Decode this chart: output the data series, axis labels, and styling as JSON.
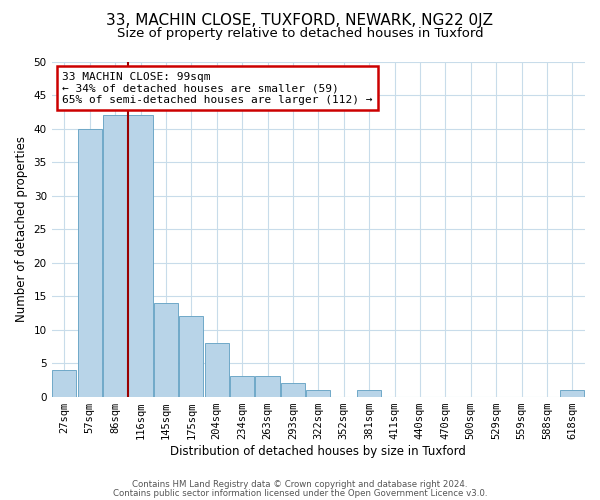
{
  "title1": "33, MACHIN CLOSE, TUXFORD, NEWARK, NG22 0JZ",
  "title2": "Size of property relative to detached houses in Tuxford",
  "xlabel": "Distribution of detached houses by size in Tuxford",
  "ylabel": "Number of detached properties",
  "bar_labels": [
    "27sqm",
    "57sqm",
    "86sqm",
    "116sqm",
    "145sqm",
    "175sqm",
    "204sqm",
    "234sqm",
    "263sqm",
    "293sqm",
    "322sqm",
    "352sqm",
    "381sqm",
    "411sqm",
    "440sqm",
    "470sqm",
    "500sqm",
    "529sqm",
    "559sqm",
    "588sqm",
    "618sqm"
  ],
  "bar_values": [
    4,
    40,
    42,
    42,
    14,
    12,
    8,
    3,
    3,
    2,
    1,
    0,
    1,
    0,
    0,
    0,
    0,
    0,
    0,
    0,
    1
  ],
  "bar_color": "#b8d4e8",
  "bar_edge_color": "#6fa8c8",
  "vline_color": "#990000",
  "vline_x_index": 2.5,
  "annotation_text": "33 MACHIN CLOSE: 99sqm\n← 34% of detached houses are smaller (59)\n65% of semi-detached houses are larger (112) →",
  "annotation_box_edgecolor": "#cc0000",
  "annotation_box_facecolor": "#ffffff",
  "ylim": [
    0,
    50
  ],
  "yticks": [
    0,
    5,
    10,
    15,
    20,
    25,
    30,
    35,
    40,
    45,
    50
  ],
  "footer1": "Contains HM Land Registry data © Crown copyright and database right 2024.",
  "footer2": "Contains public sector information licensed under the Open Government Licence v3.0.",
  "bg_color": "#ffffff",
  "grid_color": "#c8dcea",
  "title1_fontsize": 11,
  "title2_fontsize": 9.5,
  "annot_fontsize": 8,
  "tick_fontsize": 7.5,
  "ylabel_fontsize": 8.5,
  "xlabel_fontsize": 8.5,
  "footer_fontsize": 6.2
}
